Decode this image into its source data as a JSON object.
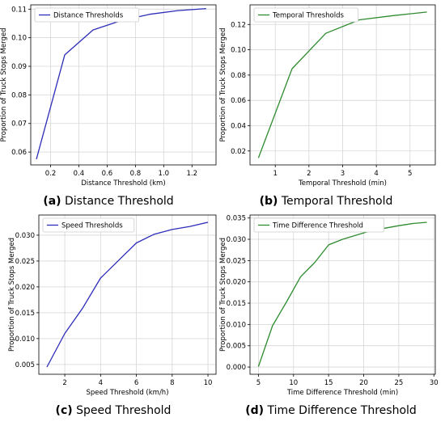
{
  "chart_data": [
    {
      "type": "line",
      "xlabel": "Distance Threshold (km)",
      "ylabel": "Proportion of Truck Stops Merged",
      "xlim": [
        0.06,
        1.37
      ],
      "ylim": [
        0.0555,
        0.1115
      ],
      "xticks": [
        0.2,
        0.4,
        0.6,
        0.8,
        1.0,
        1.2
      ],
      "xtick_labels": [
        "0.2",
        "0.4",
        "0.6",
        "0.8",
        "1.0",
        "1.2"
      ],
      "yticks": [
        0.06,
        0.07,
        0.08,
        0.09,
        0.1,
        0.11
      ],
      "ytick_labels": [
        "0.06",
        "0.07",
        "0.08",
        "0.09",
        "0.10",
        "0.11"
      ],
      "legend_position": "top-left",
      "grid": true,
      "series": [
        {
          "name": "Distance Thresholds",
          "color": "#2c2cb8",
          "x": [
            0.1,
            0.3,
            0.5,
            0.7,
            0.9,
            1.1,
            1.3
          ],
          "y": [
            0.0575,
            0.094,
            0.1027,
            0.106,
            0.1082,
            0.1095,
            0.1102
          ]
        }
      ],
      "caption_letter": "(a)",
      "caption_text": "Distance Threshold"
    },
    {
      "type": "line",
      "xlabel": "Temporal Threshold (min)",
      "ylabel": "Proportion of Truck Stops Merged",
      "xlim": [
        0.25,
        5.75
      ],
      "ylim": [
        0.009,
        0.1355
      ],
      "xticks": [
        1,
        2,
        3,
        4,
        5
      ],
      "xtick_labels": [
        "1",
        "2",
        "3",
        "4",
        "5"
      ],
      "yticks": [
        0.02,
        0.04,
        0.06,
        0.08,
        0.1,
        0.12
      ],
      "ytick_labels": [
        "0.02",
        "0.04",
        "0.06",
        "0.08",
        "0.10",
        "0.12"
      ],
      "legend_position": "top-left",
      "grid": true,
      "series": [
        {
          "name": "Temporal Thresholds",
          "color": "#2e8b2e",
          "x": [
            0.5,
            1.5,
            2.5,
            3.5,
            4.5,
            5.5
          ],
          "y": [
            0.0145,
            0.085,
            0.113,
            0.1237,
            0.127,
            0.1298
          ]
        }
      ],
      "caption_letter": "(b)",
      "caption_text": "Temporal Threshold"
    },
    {
      "type": "line",
      "xlabel": "Speed Threshold (km/h)",
      "ylabel": "Proportion of Truck Stops Merged",
      "xlim": [
        0.55,
        10.45
      ],
      "ylim": [
        0.0031,
        0.0339
      ],
      "xticks": [
        2,
        4,
        6,
        8,
        10
      ],
      "xtick_labels": [
        "2",
        "4",
        "6",
        "8",
        "10"
      ],
      "yticks": [
        0.005,
        0.01,
        0.015,
        0.02,
        0.025,
        0.03
      ],
      "ytick_labels": [
        "0.005",
        "0.010",
        "0.015",
        "0.020",
        "0.025",
        "0.030"
      ],
      "legend_position": "top-left",
      "grid": true,
      "series": [
        {
          "name": "Speed Thresholds",
          "color": "#2c2cb8",
          "x": [
            1,
            2,
            3,
            4,
            5,
            6,
            7,
            8,
            9,
            10
          ],
          "y": [
            0.0045,
            0.011,
            0.0159,
            0.0217,
            0.0251,
            0.0285,
            0.0302,
            0.0311,
            0.0317,
            0.0325
          ]
        }
      ],
      "caption_letter": "(c)",
      "caption_text": "Speed Threshold"
    },
    {
      "type": "line",
      "xlabel": "Time Difference Threshold (min)",
      "ylabel": "Proportion of Truck Stops Merged",
      "xlim": [
        3.8,
        30.2
      ],
      "ylim": [
        -0.0017,
        0.0357
      ],
      "xticks": [
        5,
        10,
        15,
        20,
        25,
        30
      ],
      "xtick_labels": [
        "5",
        "10",
        "15",
        "20",
        "25",
        "30"
      ],
      "yticks": [
        0.0,
        0.005,
        0.01,
        0.015,
        0.02,
        0.025,
        0.03,
        0.035
      ],
      "ytick_labels": [
        "0.000",
        "0.005",
        "0.010",
        "0.015",
        "0.020",
        "0.025",
        "0.030",
        "0.035"
      ],
      "legend_position": "top-left",
      "grid": true,
      "series": [
        {
          "name": "Time Difference Threshold",
          "color": "#2e8b2e",
          "x": [
            5,
            7,
            9,
            11,
            13,
            15,
            17,
            19,
            21,
            23,
            25,
            27,
            29
          ],
          "y": [
            0.0001,
            0.0097,
            0.0153,
            0.0212,
            0.0245,
            0.0287,
            0.03,
            0.031,
            0.032,
            0.0326,
            0.0332,
            0.0337,
            0.034
          ]
        }
      ],
      "caption_letter": "(d)",
      "caption_text": "Time Difference Threshold"
    }
  ]
}
